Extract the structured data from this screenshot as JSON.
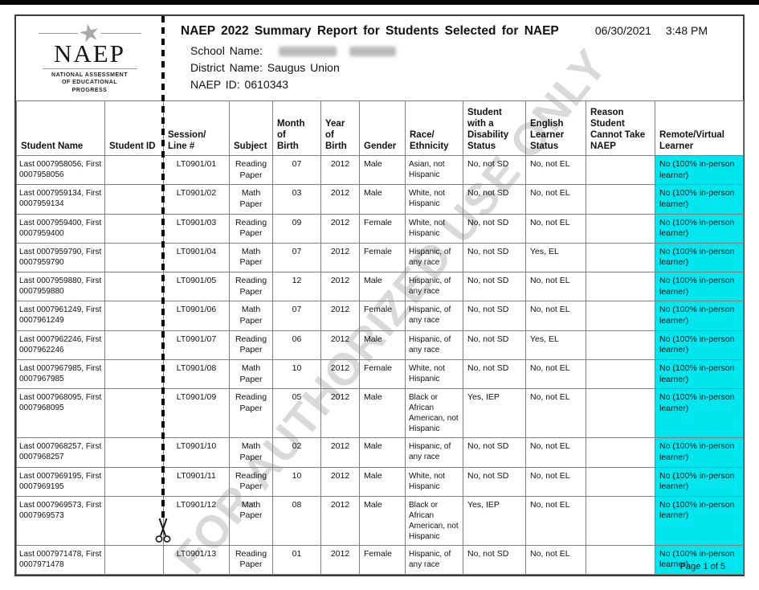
{
  "page": {
    "footer_page_label": "Page 1 of 5"
  },
  "header": {
    "logo": {
      "wordmark": "NAEP",
      "tagline": "NATIONAL ASSESSMENT\nOF EDUCATIONAL\nPROGRESS"
    },
    "title": "NAEP 2022 Summary Report for Students Selected for NAEP",
    "date": "06/30/2021",
    "time": "3:48 PM",
    "school_name_label": "School Name:",
    "school_name_redacted": true,
    "district_name_label": "District Name:",
    "district_name_value": "Saugus Union",
    "naep_id_label": "NAEP ID:",
    "naep_id_value": "0610343"
  },
  "watermark": "FOR AUTHORIZED USE ONLY",
  "table": {
    "highlight_color": "#00e6ef",
    "columns": [
      "Student Name",
      "Student ID",
      "Session/\nLine #",
      "Subject",
      "Month\nof\nBirth",
      "Year\nof\nBirth",
      "Gender",
      "Race/\nEthnicity",
      "Student\nwith a\nDisability\nStatus",
      "English\nLearner\nStatus",
      "Reason\nStudent\nCannot Take\nNAEP",
      "Remote/Virtual\nLearner"
    ],
    "rows": [
      {
        "name": "Last 0007958056, First 0007958056",
        "student_id": "",
        "session": "LT0901/01",
        "subject": "Reading\nPaper",
        "month": "07",
        "year": "2012",
        "gender": "Male",
        "race": "Asian, not Hispanic",
        "sd": "No, not SD",
        "el": "No, not EL",
        "reason": "",
        "remote": "No (100% in-person learner)",
        "tall": false
      },
      {
        "name": "Last 0007959134, First 0007959134",
        "student_id": "",
        "session": "LT0901/02",
        "subject": "Math\nPaper",
        "month": "03",
        "year": "2012",
        "gender": "Male",
        "race": "White, not Hispanic",
        "sd": "No, not SD",
        "el": "No, not EL",
        "reason": "",
        "remote": "No (100% in-person learner)",
        "tall": false
      },
      {
        "name": "Last 0007959400, First 0007959400",
        "student_id": "",
        "session": "LT0901/03",
        "subject": "Reading\nPaper",
        "month": "09",
        "year": "2012",
        "gender": "Female",
        "race": "White, not Hispanic",
        "sd": "No, not SD",
        "el": "No, not EL",
        "reason": "",
        "remote": "No (100% in-person learner)",
        "tall": false
      },
      {
        "name": "Last 0007959790, First 0007959790",
        "student_id": "",
        "session": "LT0901/04",
        "subject": "Math\nPaper",
        "month": "07",
        "year": "2012",
        "gender": "Female",
        "race": "Hispanic, of any race",
        "sd": "No, not SD",
        "el": "Yes, EL",
        "reason": "",
        "remote": "No (100% in-person learner)",
        "tall": false
      },
      {
        "name": "Last 0007959880, First 0007959880",
        "student_id": "",
        "session": "LT0901/05",
        "subject": "Reading\nPaper",
        "month": "12",
        "year": "2012",
        "gender": "Male",
        "race": "Hispanic, of any race",
        "sd": "No, not SD",
        "el": "No, not EL",
        "reason": "",
        "remote": "No (100% in-person learner)",
        "tall": false
      },
      {
        "name": "Last 0007961249, First 0007961249",
        "student_id": "",
        "session": "LT0901/06",
        "subject": "Math\nPaper",
        "month": "07",
        "year": "2012",
        "gender": "Female",
        "race": "Hispanic, of any race",
        "sd": "No, not SD",
        "el": "No, not EL",
        "reason": "",
        "remote": "No (100% in-person learner)",
        "tall": false
      },
      {
        "name": "Last 0007962246, First 0007962246",
        "student_id": "",
        "session": "LT0901/07",
        "subject": "Reading\nPaper",
        "month": "06",
        "year": "2012",
        "gender": "Male",
        "race": "Hispanic, of any race",
        "sd": "No, not SD",
        "el": "Yes, EL",
        "reason": "",
        "remote": "No (100% in-person learner)",
        "tall": false
      },
      {
        "name": "Last 0007967985, First 0007967985",
        "student_id": "",
        "session": "LT0901/08",
        "subject": "Math\nPaper",
        "month": "10",
        "year": "2012",
        "gender": "Female",
        "race": "White, not Hispanic",
        "sd": "No, not SD",
        "el": "No, not EL",
        "reason": "",
        "remote": "No (100% in-person learner)",
        "tall": false
      },
      {
        "name": "Last 0007968095, First 0007968095",
        "student_id": "",
        "session": "LT0901/09",
        "subject": "Reading\nPaper",
        "month": "05",
        "year": "2012",
        "gender": "Male",
        "race": "Black or African American, not Hispanic",
        "sd": "Yes, IEP",
        "el": "No, not EL",
        "reason": "",
        "remote": "No (100% in-person learner)",
        "tall": true
      },
      {
        "name": "Last 0007968257, First 0007968257",
        "student_id": "",
        "session": "LT0901/10",
        "subject": "Math\nPaper",
        "month": "02",
        "year": "2012",
        "gender": "Male",
        "race": "Hispanic, of any race",
        "sd": "No, not SD",
        "el": "No, not EL",
        "reason": "",
        "remote": "No (100% in-person learner)",
        "tall": false
      },
      {
        "name": "Last 0007969195, First 0007969195",
        "student_id": "",
        "session": "LT0901/11",
        "subject": "Reading\nPaper",
        "month": "10",
        "year": "2012",
        "gender": "Male",
        "race": "White, not Hispanic",
        "sd": "No, not SD",
        "el": "No, not EL",
        "reason": "",
        "remote": "No (100% in-person learner)",
        "tall": false
      },
      {
        "name": "Last 0007969573, First 0007969573",
        "student_id": "",
        "session": "LT0901/12",
        "subject": "Math\nPaper",
        "month": "08",
        "year": "2012",
        "gender": "Male",
        "race": "Black or African American, not Hispanic",
        "sd": "Yes, IEP",
        "el": "No, not EL",
        "reason": "",
        "remote": "No (100% in-person learner)",
        "tall": true
      },
      {
        "name": "Last 0007971478, First 0007971478",
        "student_id": "",
        "session": "LT0901/13",
        "subject": "Reading\nPaper",
        "month": "01",
        "year": "2012",
        "gender": "Female",
        "race": "Hispanic, of any race",
        "sd": "No, not SD",
        "el": "No, not EL",
        "reason": "",
        "remote": "No (100% in-person learner)",
        "tall": false
      }
    ]
  }
}
